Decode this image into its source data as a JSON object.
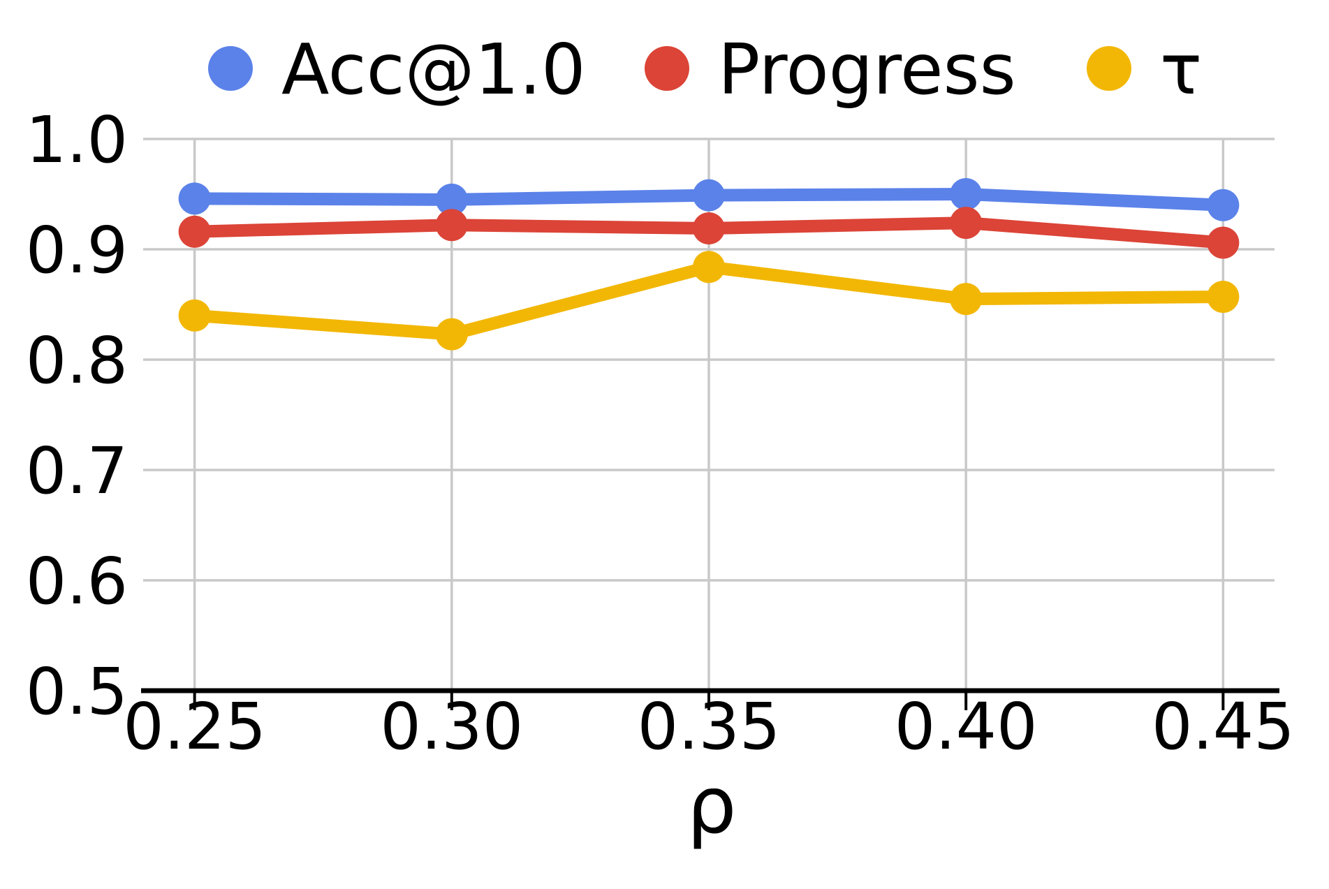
{
  "figure": {
    "background": "#ffffff",
    "title": ""
  },
  "chart_data": {
    "type": "line",
    "x": [
      0.25,
      0.3,
      0.35,
      0.4,
      0.45
    ],
    "xtick_labels": [
      "0.25",
      "0.30",
      "0.35",
      "0.40",
      "0.45"
    ],
    "yticks": [
      0.5,
      0.6,
      0.7,
      0.8,
      0.9,
      1.0
    ],
    "ytick_labels": [
      "0.5",
      "0.6",
      "0.7",
      "0.8",
      "0.9",
      "1.0"
    ],
    "xlim": [
      0.24,
      0.46
    ],
    "ylim": [
      0.5,
      1.0
    ],
    "xlabel": "ρ",
    "ylabel": "",
    "grid": true,
    "legend_position": "top",
    "series": [
      {
        "name": "Acc@1.0",
        "color": "#5B82E9",
        "values": [
          0.946,
          0.945,
          0.949,
          0.95,
          0.94
        ]
      },
      {
        "name": "Progress",
        "color": "#DB4437",
        "values": [
          0.916,
          0.922,
          0.919,
          0.924,
          0.906
        ]
      },
      {
        "name": "τ",
        "color": "#F2B705",
        "values": [
          0.84,
          0.823,
          0.884,
          0.855,
          0.857
        ]
      }
    ],
    "colors": {
      "grid": "#C9C9C9",
      "axis": "#000000",
      "text": "#000000",
      "background": "#ffffff"
    }
  }
}
